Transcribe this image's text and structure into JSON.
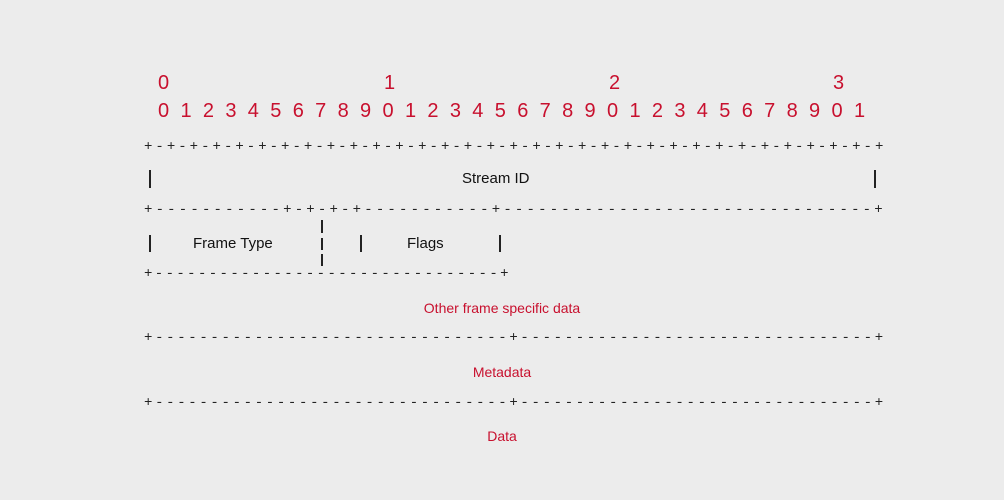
{
  "header": {
    "tens": [
      "0",
      "1",
      "2",
      "3"
    ],
    "units": [
      "0",
      "1",
      "2",
      "3",
      "4",
      "5",
      "6",
      "7",
      "8",
      "9",
      "0",
      "1",
      "2",
      "3",
      "4",
      "5",
      "6",
      "7",
      "8",
      "9",
      "0",
      "1",
      "2",
      "3",
      "4",
      "5",
      "6",
      "7",
      "8",
      "9",
      "0",
      "1"
    ]
  },
  "fields": {
    "stream_id": "Stream ID",
    "frame_type": "Frame Type",
    "flags": "Flags"
  },
  "sections": {
    "other": "Other frame specific data",
    "metadata": "Metadata",
    "data": "Data"
  }
}
